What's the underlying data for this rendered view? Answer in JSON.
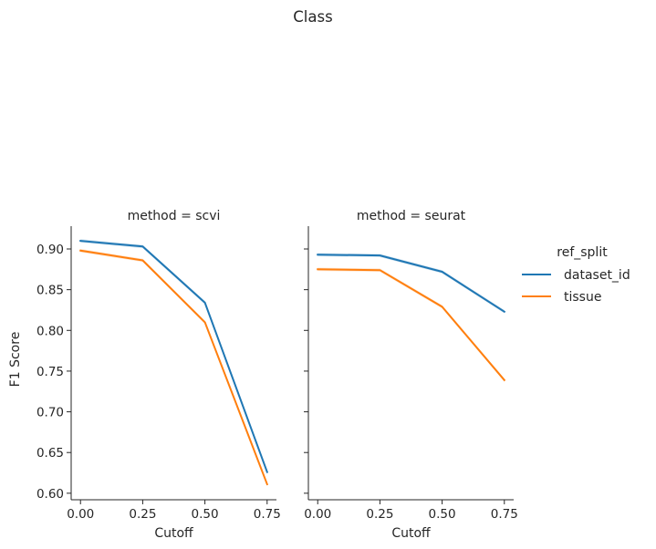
{
  "chart_data": {
    "type": "line",
    "title": "Class",
    "ylabel": "F1 Score",
    "ylim": [
      0.592,
      0.928
    ],
    "yticks": [
      0.6,
      0.65,
      0.7,
      0.75,
      0.8,
      0.85,
      0.9
    ],
    "ytick_labels": [
      "0.60",
      "0.65",
      "0.70",
      "0.75",
      "0.80",
      "0.85",
      "0.90"
    ],
    "xlim": [
      -0.0375,
      0.7875
    ],
    "xticks": [
      0.0,
      0.25,
      0.5,
      0.75
    ],
    "xtick_labels": [
      "0.00",
      "0.25",
      "0.50",
      "0.75"
    ],
    "legend": {
      "title": "ref_split",
      "placement": "right",
      "entries": [
        {
          "label": "dataset_id",
          "color": "#1f77b4"
        },
        {
          "label": "tissue",
          "color": "#ff7f0e"
        }
      ]
    },
    "panels": [
      {
        "title": "method = scvi",
        "xlabel": "Cutoff",
        "series": [
          {
            "name": "dataset_id",
            "color": "#1f77b4",
            "x": [
              0.0,
              0.25,
              0.5,
              0.75
            ],
            "y": [
              0.91,
              0.903,
              0.834,
              0.626
            ]
          },
          {
            "name": "tissue",
            "color": "#ff7f0e",
            "x": [
              0.0,
              0.25,
              0.5,
              0.75
            ],
            "y": [
              0.898,
              0.886,
              0.81,
              0.611
            ]
          }
        ]
      },
      {
        "title": "method = seurat",
        "xlabel": "Cutoff",
        "series": [
          {
            "name": "dataset_id",
            "color": "#1f77b4",
            "x": [
              0.0,
              0.25,
              0.5,
              0.75
            ],
            "y": [
              0.893,
              0.892,
              0.872,
              0.823
            ]
          },
          {
            "name": "tissue",
            "color": "#ff7f0e",
            "x": [
              0.0,
              0.25,
              0.5,
              0.75
            ],
            "y": [
              0.875,
              0.874,
              0.829,
              0.739
            ]
          }
        ]
      }
    ]
  }
}
